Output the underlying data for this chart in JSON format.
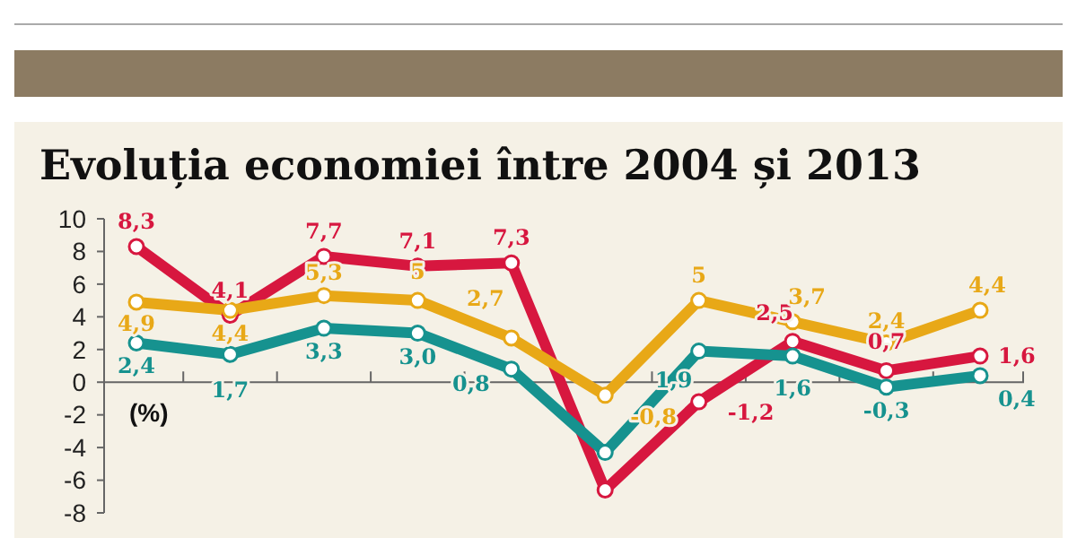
{
  "chart_data": {
    "type": "line",
    "title": "Evoluția economiei între 2004 și 2013",
    "ylabel": "(%)",
    "categories": [
      null,
      null,
      null,
      null,
      null,
      null,
      null,
      null,
      null,
      null
    ],
    "series": [
      {
        "color": "#d7173f",
        "values": [
          8.3,
          4.1,
          7.7,
          7.1,
          7.3,
          -6.6,
          -1.2,
          2.5,
          0.7,
          1.6
        ],
        "value_labels": [
          "8,3",
          "4,1",
          "7,7",
          "7,1",
          "7,3",
          null,
          "-1,2",
          "2,5",
          "0,7",
          "1,6"
        ]
      },
      {
        "color": "#e8a817",
        "values": [
          4.9,
          4.4,
          5.3,
          5,
          2.7,
          -0.8,
          5,
          3.7,
          2.4,
          4.4
        ],
        "value_labels": [
          "4,9",
          "4,4",
          "5,3",
          "5",
          "2,7",
          "-0,8",
          "5",
          "3,7",
          "2,4",
          "4,4"
        ]
      },
      {
        "color": "#16928f",
        "values": [
          2.4,
          1.7,
          3.3,
          3.0,
          0.8,
          -4.3,
          1.9,
          1.6,
          -0.3,
          0.4
        ],
        "value_labels": [
          "2,4",
          "1,7",
          "3,3",
          "3,0",
          "0,8",
          null,
          "1,9",
          "1,6",
          "-0,3",
          "0,4"
        ]
      }
    ],
    "ylim": [
      -8,
      10
    ],
    "yticks": [
      -8,
      -6,
      -4,
      -2,
      0,
      2,
      4,
      6,
      8,
      10
    ],
    "grid": false,
    "marker": "circle",
    "line_style": "solid"
  }
}
